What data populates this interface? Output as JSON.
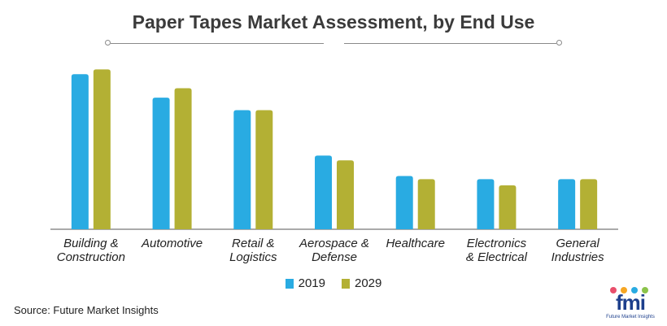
{
  "title": "Paper Tapes Market Assessment, by End Use",
  "source": "Source: Future Market Insights",
  "logo": {
    "text": "fmi",
    "subtitle": "Future Market Insights"
  },
  "colors": {
    "series_2019": "#29abe2",
    "series_2029": "#b3b034",
    "axis": "#555555",
    "logo_dots": [
      "#e94f6c",
      "#f6a623",
      "#29abe2",
      "#8bc34a",
      "#9c27b0"
    ]
  },
  "chart_data": {
    "type": "bar",
    "categories": [
      [
        "Building &",
        "Construction"
      ],
      [
        "Automotive"
      ],
      [
        "Retail &",
        "Logistics"
      ],
      [
        "Aerospace &",
        "Defense"
      ],
      [
        "Healthcare"
      ],
      [
        "Electronics",
        "& Electrical"
      ],
      [
        "General",
        "Industries"
      ]
    ],
    "series": [
      {
        "name": "2019",
        "values": [
          99,
          84,
          76,
          47,
          34,
          32,
          32
        ]
      },
      {
        "name": "2029",
        "values": [
          102,
          90,
          76,
          44,
          32,
          28,
          32
        ]
      }
    ],
    "ylim": [
      0,
      110
    ],
    "grid": false,
    "legend_position": "bottom-center"
  }
}
